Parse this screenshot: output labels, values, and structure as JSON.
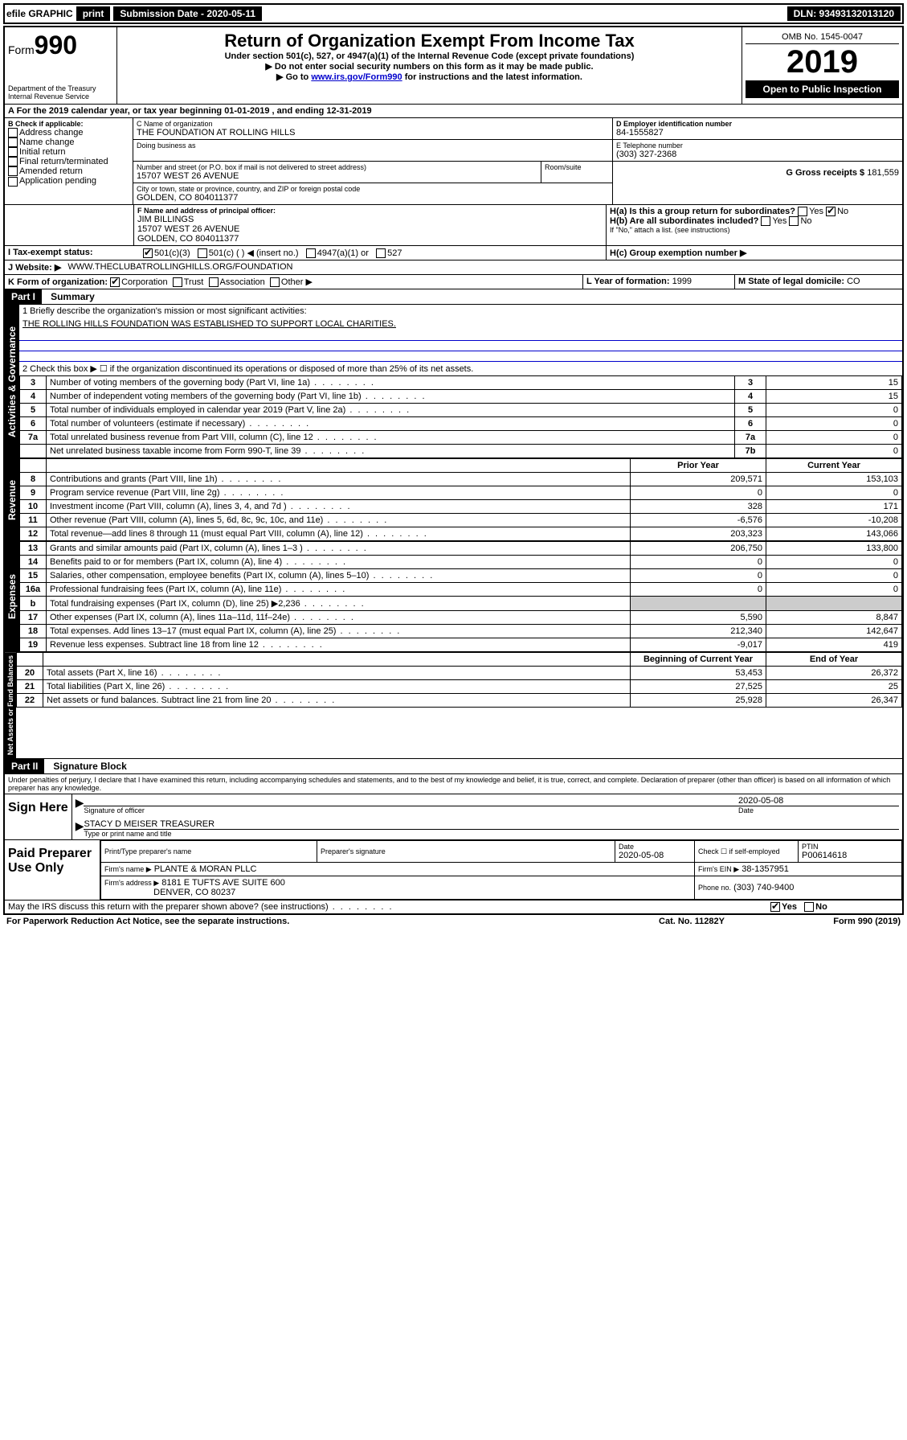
{
  "topbar": {
    "efile": "efile GRAPHIC",
    "print": "print",
    "sub_label": "Submission Date - 2020-05-11",
    "dln": "DLN: 93493132013120"
  },
  "header": {
    "form_label": "Form",
    "form_num": "990",
    "dept": "Department of the Treasury\nInternal Revenue Service",
    "title": "Return of Organization Exempt From Income Tax",
    "sub1": "Under section 501(c), 527, or 4947(a)(1) of the Internal Revenue Code (except private foundations)",
    "sub2": "▶ Do not enter social security numbers on this form as it may be made public.",
    "sub3": "▶ Go to www.irs.gov/Form990 for instructions and the latest information.",
    "link": "www.irs.gov/Form990",
    "omb": "OMB No. 1545-0047",
    "year": "2019",
    "open": "Open to Public Inspection"
  },
  "period": {
    "line": "A For the 2019 calendar year, or tax year beginning 01-01-2019   , and ending 12-31-2019"
  },
  "boxB": {
    "label": "B Check if applicable:",
    "items": [
      "Address change",
      "Name change",
      "Initial return",
      "Final return/terminated",
      "Amended return",
      "Application pending"
    ]
  },
  "boxC": {
    "name_label": "C Name of organization",
    "name": "THE FOUNDATION AT ROLLING HILLS",
    "dba_label": "Doing business as",
    "addr_label": "Number and street (or P.O. box if mail is not delivered to street address)",
    "room_label": "Room/suite",
    "addr": "15707 WEST 26 AVENUE",
    "city_label": "City or town, state or province, country, and ZIP or foreign postal code",
    "city": "GOLDEN, CO  804011377"
  },
  "boxD": {
    "label": "D Employer identification number",
    "value": "84-1555827"
  },
  "boxE": {
    "label": "E Telephone number",
    "value": "(303) 327-2368"
  },
  "boxG": {
    "label": "G Gross receipts $",
    "value": "181,559"
  },
  "boxF": {
    "label": "F Name and address of principal officer:",
    "name": "JIM BILLINGS",
    "addr1": "15707 WEST 26 AVENUE",
    "addr2": "GOLDEN, CO  804011377"
  },
  "boxH": {
    "a_label": "H(a)  Is this a group return for subordinates?",
    "b_label": "H(b)  Are all subordinates included?",
    "b_note": "If \"No,\" attach a list. (see instructions)",
    "c_label": "H(c)  Group exemption number ▶",
    "yes": "Yes",
    "no": "No"
  },
  "boxI": {
    "label": "I   Tax-exempt status:",
    "opts": [
      "501(c)(3)",
      "501(c) (  ) ◀ (insert no.)",
      "4947(a)(1) or",
      "527"
    ]
  },
  "boxJ": {
    "label": "J   Website: ▶",
    "value": "WWW.THECLUBATROLLINGHILLS.ORG/FOUNDATION"
  },
  "boxK": {
    "label": "K Form of organization:",
    "opts": [
      "Corporation",
      "Trust",
      "Association",
      "Other ▶"
    ]
  },
  "boxL": {
    "label": "L Year of formation:",
    "value": "1999"
  },
  "boxM": {
    "label": "M State of legal domicile:",
    "value": "CO"
  },
  "part1": {
    "header": "Part I",
    "title": "Summary",
    "q1": "1  Briefly describe the organization's mission or most significant activities:",
    "mission": "THE ROLLING HILLS FOUNDATION WAS ESTABLISHED TO SUPPORT LOCAL CHARITIES.",
    "q2": "2   Check this box ▶ ☐  if the organization discontinued its operations or disposed of more than 25% of its net assets.",
    "rows_gov": [
      {
        "n": "3",
        "desc": "Number of voting members of the governing body (Part VI, line 1a)",
        "box": "3",
        "val": "15"
      },
      {
        "n": "4",
        "desc": "Number of independent voting members of the governing body (Part VI, line 1b)",
        "box": "4",
        "val": "15"
      },
      {
        "n": "5",
        "desc": "Total number of individuals employed in calendar year 2019 (Part V, line 2a)",
        "box": "5",
        "val": "0"
      },
      {
        "n": "6",
        "desc": "Total number of volunteers (estimate if necessary)",
        "box": "6",
        "val": "0"
      },
      {
        "n": "7a",
        "desc": "Total unrelated business revenue from Part VIII, column (C), line 12",
        "box": "7a",
        "val": "0"
      },
      {
        "n": "",
        "desc": "Net unrelated business taxable income from Form 990-T, line 39",
        "box": "7b",
        "val": "0"
      }
    ],
    "col_prior": "Prior Year",
    "col_current": "Current Year",
    "rows_rev": [
      {
        "n": "8",
        "desc": "Contributions and grants (Part VIII, line 1h)",
        "p": "209,571",
        "c": "153,103"
      },
      {
        "n": "9",
        "desc": "Program service revenue (Part VIII, line 2g)",
        "p": "0",
        "c": "0"
      },
      {
        "n": "10",
        "desc": "Investment income (Part VIII, column (A), lines 3, 4, and 7d )",
        "p": "328",
        "c": "171"
      },
      {
        "n": "11",
        "desc": "Other revenue (Part VIII, column (A), lines 5, 6d, 8c, 9c, 10c, and 11e)",
        "p": "-6,576",
        "c": "-10,208"
      },
      {
        "n": "12",
        "desc": "Total revenue—add lines 8 through 11 (must equal Part VIII, column (A), line 12)",
        "p": "203,323",
        "c": "143,066"
      }
    ],
    "rows_exp": [
      {
        "n": "13",
        "desc": "Grants and similar amounts paid (Part IX, column (A), lines 1–3 )",
        "p": "206,750",
        "c": "133,800"
      },
      {
        "n": "14",
        "desc": "Benefits paid to or for members (Part IX, column (A), line 4)",
        "p": "0",
        "c": "0"
      },
      {
        "n": "15",
        "desc": "Salaries, other compensation, employee benefits (Part IX, column (A), lines 5–10)",
        "p": "0",
        "c": "0"
      },
      {
        "n": "16a",
        "desc": "Professional fundraising fees (Part IX, column (A), line 11e)",
        "p": "0",
        "c": "0"
      },
      {
        "n": "b",
        "desc": "Total fundraising expenses (Part IX, column (D), line 25) ▶2,236",
        "p": "",
        "c": "",
        "grey": true
      },
      {
        "n": "17",
        "desc": "Other expenses (Part IX, column (A), lines 11a–11d, 11f–24e)",
        "p": "5,590",
        "c": "8,847"
      },
      {
        "n": "18",
        "desc": "Total expenses. Add lines 13–17 (must equal Part IX, column (A), line 25)",
        "p": "212,340",
        "c": "142,647"
      },
      {
        "n": "19",
        "desc": "Revenue less expenses. Subtract line 18 from line 12",
        "p": "-9,017",
        "c": "419"
      }
    ],
    "col_begin": "Beginning of Current Year",
    "col_end": "End of Year",
    "rows_net": [
      {
        "n": "20",
        "desc": "Total assets (Part X, line 16)",
        "p": "53,453",
        "c": "26,372"
      },
      {
        "n": "21",
        "desc": "Total liabilities (Part X, line 26)",
        "p": "27,525",
        "c": "25"
      },
      {
        "n": "22",
        "desc": "Net assets or fund balances. Subtract line 21 from line 20",
        "p": "25,928",
        "c": "26,347"
      }
    ]
  },
  "part2": {
    "header": "Part II",
    "title": "Signature Block",
    "perjury": "Under penalties of perjury, I declare that I have examined this return, including accompanying schedules and statements, and to the best of my knowledge and belief, it is true, correct, and complete. Declaration of preparer (other than officer) is based on all information of which preparer has any knowledge.",
    "sign_here": "Sign Here",
    "sig_officer": "Signature of officer",
    "sig_date": "2020-05-08",
    "date_label": "Date",
    "officer_name": "STACY D MEISER  TREASURER",
    "type_name": "Type or print name and title",
    "paid": "Paid Preparer Use Only",
    "prep_name_label": "Print/Type preparer's name",
    "prep_sig_label": "Preparer's signature",
    "prep_date_label": "Date",
    "prep_date": "2020-05-08",
    "check_label": "Check ☐ if self-employed",
    "ptin_label": "PTIN",
    "ptin": "P00614618",
    "firm_name_label": "Firm's name    ▶",
    "firm_name": "PLANTE & MORAN PLLC",
    "firm_ein_label": "Firm's EIN ▶",
    "firm_ein": "38-1357951",
    "firm_addr_label": "Firm's address ▶",
    "firm_addr1": "8181 E TUFTS AVE SUITE 600",
    "firm_addr2": "DENVER, CO  80237",
    "phone_label": "Phone no.",
    "phone": "(303) 740-9400",
    "discuss": "May the IRS discuss this return with the preparer shown above? (see instructions)",
    "paperwork": "For Paperwork Reduction Act Notice, see the separate instructions.",
    "cat": "Cat. No. 11282Y",
    "formfoot": "Form 990 (2019)"
  },
  "vtabs": {
    "gov": "Activities & Governance",
    "rev": "Revenue",
    "exp": "Expenses",
    "net": "Net Assets or Fund Balances"
  }
}
